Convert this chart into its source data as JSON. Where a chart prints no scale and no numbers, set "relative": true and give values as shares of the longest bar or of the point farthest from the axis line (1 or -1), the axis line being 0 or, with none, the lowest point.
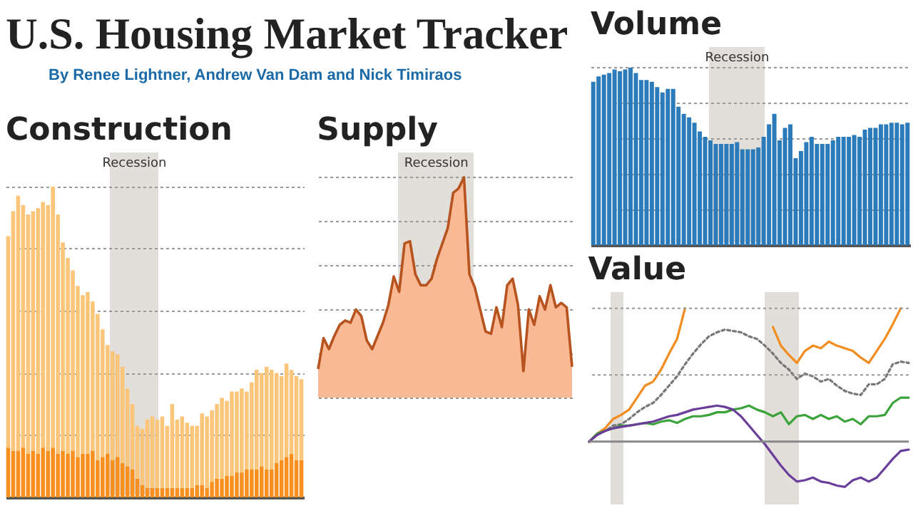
{
  "chart_data": [
    {
      "type": "other",
      "title": "U.S. Housing Market Tracker",
      "subtitle": "By Renee Lightner, Andrew Van Dam and Nick Timiraos"
    },
    {
      "type": "bar",
      "title": "Construction",
      "relative": true,
      "stacked": true,
      "grid": "y",
      "tick_labels": false,
      "categories": [
        null,
        null,
        null,
        null,
        null,
        null,
        null,
        null,
        null,
        null,
        null,
        null,
        null,
        null,
        null,
        null,
        null,
        null,
        null,
        null,
        null,
        null,
        null,
        null,
        null,
        null,
        null,
        null,
        null,
        null,
        null,
        null,
        null,
        null,
        null,
        null,
        null,
        null,
        null,
        null,
        null,
        null,
        null,
        null,
        null,
        null,
        null,
        null,
        null,
        null,
        null,
        null,
        null,
        null,
        null,
        null,
        null,
        null,
        null,
        null
      ],
      "annotations": [
        "Recession"
      ],
      "series": [
        {
          "color": "#f7901e",
          "values": [
            0.16,
            0.15,
            0.15,
            0.16,
            0.14,
            0.15,
            0.14,
            0.16,
            0.15,
            0.16,
            0.14,
            0.15,
            0.14,
            0.15,
            0.13,
            0.14,
            0.14,
            0.15,
            0.12,
            0.13,
            0.14,
            0.12,
            0.13,
            0.11,
            0.1,
            0.09,
            0.06,
            0.04,
            0.03,
            0.03,
            0.03,
            0.03,
            0.03,
            0.03,
            0.03,
            0.03,
            0.03,
            0.03,
            0.04,
            0.04,
            0.03,
            0.05,
            0.06,
            0.06,
            0.07,
            0.07,
            0.08,
            0.08,
            0.09,
            0.09,
            0.09,
            0.1,
            0.09,
            0.09,
            0.11,
            0.12,
            0.13,
            0.14,
            0.12,
            0.12
          ]
        },
        {
          "color": "#fcc67a",
          "values": [
            0.68,
            0.77,
            0.82,
            0.78,
            0.77,
            0.77,
            0.79,
            0.79,
            0.79,
            0.84,
            0.77,
            0.67,
            0.63,
            0.58,
            0.55,
            0.51,
            0.52,
            0.48,
            0.47,
            0.41,
            0.35,
            0.35,
            0.33,
            0.31,
            0.25,
            0.21,
            0.17,
            0.18,
            0.22,
            0.23,
            0.22,
            0.23,
            0.2,
            0.27,
            0.22,
            0.23,
            0.21,
            0.2,
            0.19,
            0.23,
            0.23,
            0.23,
            0.24,
            0.26,
            0.24,
            0.27,
            0.26,
            0.27,
            0.25,
            0.28,
            0.32,
            0.3,
            0.33,
            0.32,
            0.29,
            0.27,
            0.3,
            0.27,
            0.27,
            0.26
          ]
        }
      ]
    },
    {
      "type": "area",
      "title": "Supply",
      "relative": true,
      "grid": "y",
      "tick_labels": false,
      "categories": [
        null,
        null,
        null,
        null,
        null,
        null,
        null,
        null,
        null,
        null,
        null,
        null,
        null,
        null,
        null,
        null,
        null,
        null,
        null,
        null,
        null,
        null,
        null,
        null,
        null,
        null,
        null,
        null,
        null,
        null,
        null,
        null,
        null,
        null,
        null,
        null,
        null,
        null,
        null,
        null,
        null,
        null,
        null,
        null,
        null,
        null,
        null,
        null
      ],
      "annotations": [
        "Recession"
      ],
      "series": [
        {
          "color": "#f9b994",
          "values": [
            0.13,
            0.27,
            0.22,
            0.28,
            0.33,
            0.35,
            0.34,
            0.4,
            0.37,
            0.26,
            0.22,
            0.28,
            0.34,
            0.42,
            0.55,
            0.48,
            0.7,
            0.71,
            0.56,
            0.51,
            0.51,
            0.54,
            0.63,
            0.7,
            0.77,
            0.93,
            0.95,
            1,
            0.56,
            0.5,
            0.4,
            0.3,
            0.29,
            0.41,
            0.32,
            0.51,
            0.54,
            0.42,
            0.12,
            0.4,
            0.33,
            0.46,
            0.4,
            0.51,
            0.41,
            0.43,
            0.41,
            0.14
          ]
        }
      ]
    },
    {
      "type": "bar",
      "title": "Volume",
      "relative": true,
      "grid": "y",
      "tick_labels": false,
      "categories": [
        null,
        null,
        null,
        null,
        null,
        null,
        null,
        null,
        null,
        null,
        null,
        null,
        null,
        null,
        null,
        null,
        null,
        null,
        null,
        null,
        null,
        null,
        null,
        null,
        null,
        null,
        null,
        null,
        null,
        null,
        null,
        null,
        null,
        null,
        null,
        null,
        null,
        null,
        null,
        null,
        null,
        null,
        null,
        null,
        null,
        null,
        null,
        null,
        null,
        null,
        null,
        null,
        null,
        null,
        null,
        null,
        null,
        null,
        null,
        null
      ],
      "annotations": [
        "Recession"
      ],
      "series": [
        {
          "color": "#2b7bba",
          "values": [
            0.92,
            0.95,
            0.96,
            0.97,
            0.99,
            0.98,
            0.99,
            1,
            0.97,
            0.93,
            0.93,
            0.92,
            0.89,
            0.86,
            0.88,
            0.88,
            0.78,
            0.74,
            0.72,
            0.69,
            0.64,
            0.61,
            0.59,
            0.57,
            0.57,
            0.57,
            0.57,
            0.58,
            0.54,
            0.54,
            0.54,
            0.55,
            0.61,
            0.68,
            0.74,
            0.59,
            0.66,
            0.68,
            0.49,
            0.53,
            0.58,
            0.61,
            0.57,
            0.57,
            0.57,
            0.59,
            0.61,
            0.61,
            0.61,
            0.62,
            0.61,
            0.65,
            0.66,
            0.66,
            0.68,
            0.68,
            0.69,
            0.69,
            0.68,
            0.69
          ]
        }
      ]
    },
    {
      "type": "line",
      "title": "Value",
      "relative": true,
      "tick_labels": false,
      "categories": [
        null,
        null,
        null,
        null,
        null,
        null,
        null,
        null,
        null,
        null,
        null,
        null,
        null,
        null,
        null,
        null,
        null,
        null,
        null,
        null,
        null,
        null,
        null,
        null,
        null,
        null,
        null,
        null,
        null,
        null,
        null,
        null,
        null,
        null,
        null,
        null,
        null,
        null,
        null,
        null,
        null
      ],
      "ref_lines": [
        {
          "axis": "y",
          "value": 0,
          "color": "#888888"
        },
        {
          "axis": "y",
          "value": 0.5,
          "color": "#999999",
          "line_style": "dotted"
        },
        {
          "axis": "y",
          "value": 1,
          "color": "#999999",
          "line_style": "dotted"
        }
      ],
      "series": [
        {
          "color": "#f28c1e",
          "values": [
            0,
            0.06,
            0.1,
            0.17,
            0.2,
            0.24,
            0.33,
            0.42,
            0.45,
            0.54,
            0.66,
            0.77,
            1,
            null,
            null,
            null,
            null,
            null,
            null,
            null,
            null,
            null,
            null,
            0.86,
            0.72,
            0.65,
            0.59,
            0.68,
            0.72,
            0.7,
            0.75,
            0.72,
            0.7,
            0.68,
            0.63,
            0.59,
            0.68,
            0.77,
            0.88,
            1,
            null
          ]
        },
        {
          "color": "#777777",
          "line_style": "dotted",
          "values": [
            0,
            0.05,
            0.08,
            0.12,
            0.13,
            0.17,
            0.22,
            0.26,
            0.29,
            0.35,
            0.42,
            0.49,
            0.58,
            0.66,
            0.73,
            0.79,
            0.82,
            0.84,
            0.83,
            0.82,
            0.79,
            0.77,
            0.72,
            0.66,
            0.59,
            0.54,
            0.47,
            0.51,
            0.49,
            0.45,
            0.47,
            0.42,
            0.38,
            0.36,
            0.35,
            0.43,
            0.43,
            0.47,
            0.58,
            0.6,
            0.59
          ]
        },
        {
          "color": "#3aa33a",
          "values": [
            0,
            0.06,
            0.08,
            0.1,
            0.12,
            0.12,
            0.13,
            0.14,
            0.13,
            0.15,
            0.16,
            0.14,
            0.17,
            0.19,
            0.19,
            0.2,
            0.22,
            0.22,
            0.24,
            0.25,
            0.27,
            0.24,
            0.22,
            0.19,
            0.22,
            0.13,
            0.19,
            0.2,
            0.17,
            0.2,
            0.17,
            0.19,
            0.15,
            0.17,
            0.13,
            0.19,
            0.19,
            0.2,
            0.29,
            0.33,
            0.33
          ]
        },
        {
          "color": "#6a3d9a",
          "values": [
            0,
            0.05,
            0.08,
            0.1,
            0.11,
            0.12,
            0.13,
            0.14,
            0.15,
            0.17,
            0.19,
            0.2,
            0.22,
            0.24,
            0.25,
            0.26,
            0.27,
            0.26,
            0.24,
            0.19,
            0.12,
            0.05,
            -0.02,
            -0.1,
            -0.18,
            -0.25,
            -0.3,
            -0.29,
            -0.27,
            -0.3,
            -0.31,
            -0.33,
            -0.34,
            -0.29,
            -0.27,
            -0.3,
            -0.27,
            -0.2,
            -0.13,
            -0.07,
            -0.06
          ]
        }
      ]
    }
  ]
}
